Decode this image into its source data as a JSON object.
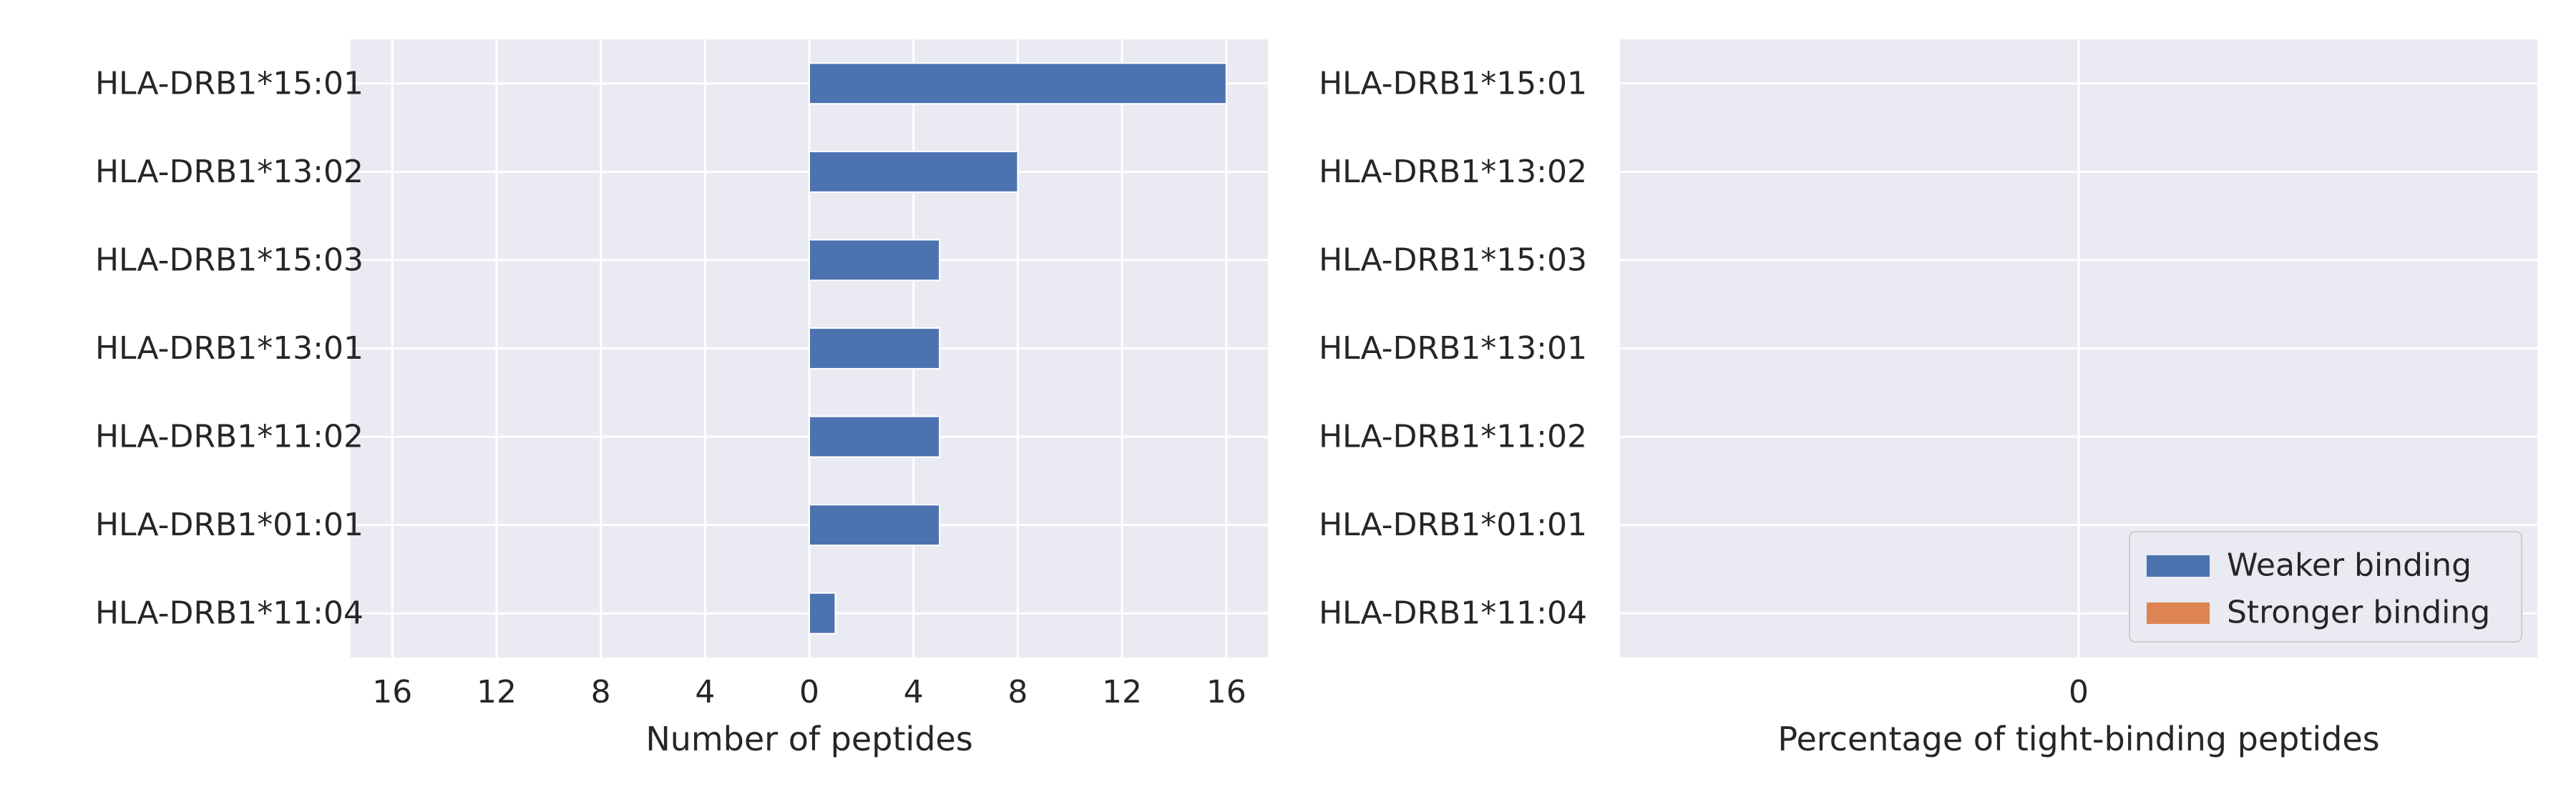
{
  "chart_data": [
    {
      "type": "bar",
      "orientation": "horizontal",
      "categories": [
        "HLA-DRB1*15:01",
        "HLA-DRB1*13:02",
        "HLA-DRB1*15:03",
        "HLA-DRB1*13:01",
        "HLA-DRB1*11:02",
        "HLA-DRB1*01:01",
        "HLA-DRB1*11:04"
      ],
      "series": [
        {
          "name": "Weaker binding",
          "values": [
            16,
            8,
            5,
            5,
            5,
            5,
            1
          ],
          "color": "#4c72b0"
        },
        {
          "name": "Stronger binding",
          "values": [
            0,
            0,
            0,
            0,
            0,
            0,
            0
          ],
          "color": "#dd8452"
        }
      ],
      "xlim": [
        -17.6,
        17.6
      ],
      "xticks": [
        -16,
        -12,
        -8,
        -4,
        0,
        4,
        8,
        12,
        16
      ],
      "xtick_labels": [
        "16",
        "12",
        "8",
        "4",
        "0",
        "4",
        "8",
        "12",
        "16"
      ],
      "xlabel": "Number of peptides",
      "ylabel": "",
      "grid": true
    },
    {
      "type": "bar",
      "orientation": "horizontal",
      "categories": [
        "HLA-DRB1*15:01",
        "HLA-DRB1*13:02",
        "HLA-DRB1*15:03",
        "HLA-DRB1*13:01",
        "HLA-DRB1*11:02",
        "HLA-DRB1*01:01",
        "HLA-DRB1*11:04"
      ],
      "series": [
        {
          "name": "Weaker binding",
          "values": [
            0,
            0,
            0,
            0,
            0,
            0,
            0
          ],
          "color": "#4c72b0"
        },
        {
          "name": "Stronger binding",
          "values": [
            0,
            0,
            0,
            0,
            0,
            0,
            0
          ],
          "color": "#dd8452"
        }
      ],
      "xlim": [
        -0.055,
        0.055
      ],
      "xticks": [
        0
      ],
      "xtick_labels": [
        "0"
      ],
      "xlabel": "Percentage of tight-binding peptides",
      "ylabel": "",
      "grid": true,
      "legend": {
        "position": "lower-right",
        "entries": [
          {
            "label": "Weaker binding",
            "color": "#4c72b0"
          },
          {
            "label": "Stronger binding",
            "color": "#dd8452"
          }
        ]
      }
    }
  ]
}
